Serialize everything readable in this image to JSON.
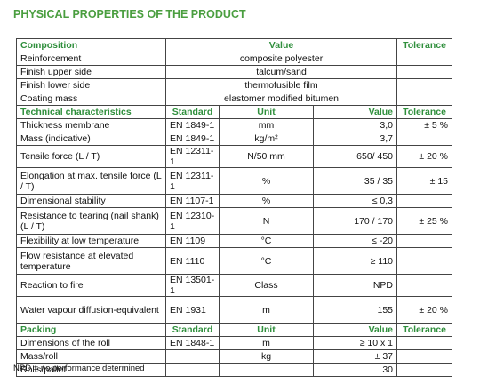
{
  "title": "PHYSICAL PROPERTIES OF THE PRODUCT",
  "composition": {
    "header": [
      "Composition",
      "Value",
      "Tolerance"
    ],
    "rows": [
      [
        "Reinforcement",
        "composite polyester",
        null
      ],
      [
        "Finish upper side",
        "talcum/sand",
        null
      ],
      [
        "Finish lower side",
        "thermofusible film",
        null
      ],
      [
        "Coating mass",
        "elastomer modified bitumen",
        null
      ]
    ]
  },
  "technical": {
    "header": [
      "Technical characteristics",
      "Standard",
      "Unit",
      "Value",
      "Tolerance"
    ],
    "rows": [
      [
        "Thickness membrane",
        "EN 1849-1",
        "mm",
        "3,0",
        "± 5 %"
      ],
      [
        "Mass (indicative)",
        "EN 1849-1",
        "kg/m²",
        "3,7",
        null
      ],
      [
        "Tensile force (L / T)",
        "EN 12311-1",
        "N/50 mm",
        "650/ 450",
        "± 20 %"
      ],
      [
        "Elongation at max. tensile force (L / T)",
        "EN 12311-1",
        "%",
        "35 / 35",
        "± 15"
      ],
      [
        "Dimensional stability",
        "EN 1107-1",
        "%",
        "≤ 0,3",
        null
      ],
      [
        "Resistance to tearing (nail shank) (L / T)",
        "EN 12310-1",
        "N",
        "170 / 170",
        "± 25 %"
      ],
      [
        "Flexibility at low temperature",
        "EN 1109",
        "°C",
        "≤ -20",
        null
      ],
      [
        "Flow resistance at elevated temperature",
        "EN 1110",
        "°C",
        "≥ 110",
        null
      ],
      [
        "Reaction to fire",
        "EN 13501-1",
        "Class",
        "NPD",
        null
      ],
      [
        "Water vapour diffusion-equivalent",
        "EN 1931",
        "m",
        "155",
        "± 20 %"
      ]
    ]
  },
  "packing": {
    "header": [
      "Packing",
      "Standard",
      "Unit",
      "Value",
      "Tolerance"
    ],
    "rows": [
      [
        "Dimensions of the roll",
        "EN 1848-1",
        "m",
        "≥ 10 x 1",
        null
      ],
      [
        "Mass/roll",
        null,
        "kg",
        "± 37",
        null
      ],
      [
        "Rolls/pallet",
        null,
        null,
        "30",
        null
      ]
    ]
  },
  "footnote": "NPD = no performance determined"
}
